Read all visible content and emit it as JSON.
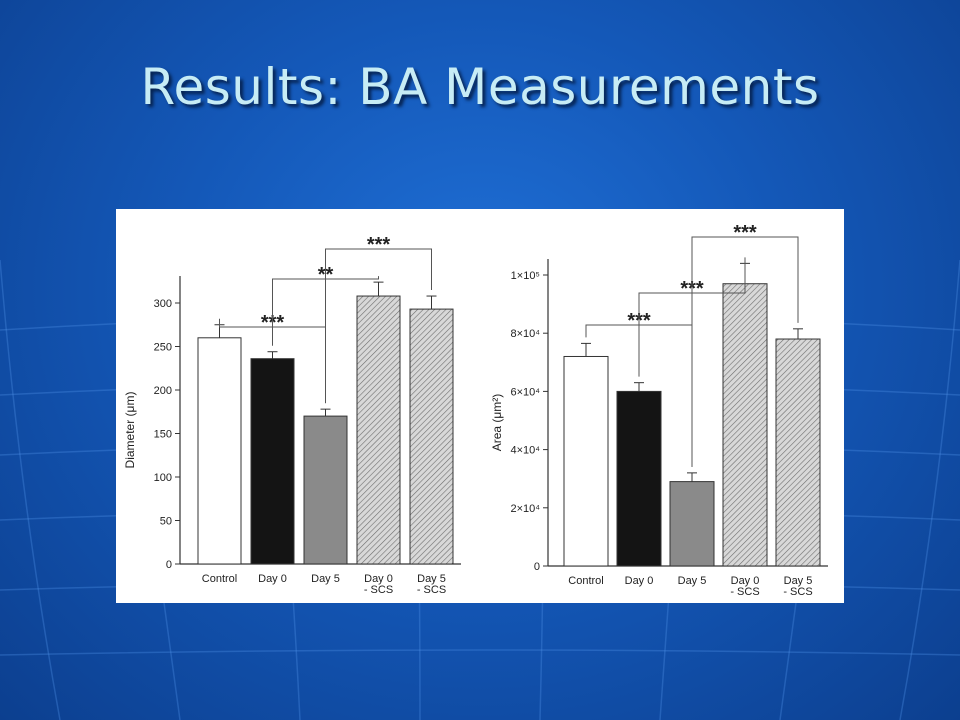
{
  "slide": {
    "title": "Results: BA Measurements"
  },
  "colors": {
    "background": "#1458b8",
    "title": "#c7ecf5",
    "panel": "#ffffff",
    "control_bar": "#ffffff",
    "day0_bar": "#141414",
    "day5_bar": "#8a8a8a",
    "scs_bar": "hatched-gray"
  },
  "chart_data": [
    {
      "type": "bar",
      "categories": [
        [
          "Control"
        ],
        [
          "Day 0"
        ],
        [
          "Day 5"
        ],
        [
          "Day 0",
          "- SCS"
        ],
        [
          "Day 5",
          "- SCS"
        ]
      ],
      "values": [
        260,
        236,
        170,
        308,
        293
      ],
      "errors": [
        15,
        8,
        8,
        16,
        15
      ],
      "fills": [
        "white",
        "black",
        "gray",
        "hatch",
        "hatch"
      ],
      "ylabel": "Diameter (μm)",
      "ylim": [
        0,
        320
      ],
      "yticks": [
        0,
        50,
        100,
        150,
        200,
        250,
        300
      ],
      "ytick_labels": [
        "0",
        "50",
        "100",
        "150",
        "200",
        "250",
        "300"
      ],
      "grid": false,
      "significance": [
        {
          "from": 0,
          "to": 2,
          "label": "***"
        },
        {
          "from": 1,
          "to": 3,
          "label": "**"
        },
        {
          "from": 2,
          "to": 4,
          "label": "***"
        }
      ]
    },
    {
      "type": "bar",
      "categories": [
        [
          "Control"
        ],
        [
          "Day 0"
        ],
        [
          "Day 5"
        ],
        [
          "Day 0",
          "- SCS"
        ],
        [
          "Day 5",
          "- SCS"
        ]
      ],
      "values": [
        72000,
        60000,
        29000,
        97000,
        78000
      ],
      "errors": [
        4500,
        3000,
        3000,
        7000,
        3500
      ],
      "fills": [
        "white",
        "black",
        "gray",
        "hatch",
        "hatch"
      ],
      "ylabel": "Area (μm²)",
      "ylim": [
        0,
        105000
      ],
      "yticks": [
        0,
        20000,
        40000,
        60000,
        80000,
        100000
      ],
      "ytick_labels": [
        "0",
        "2×10⁴",
        "4×10⁴",
        "6×10⁴",
        "8×10⁴",
        "1×10⁵"
      ],
      "grid": false,
      "significance": [
        {
          "from": 0,
          "to": 2,
          "label": "***"
        },
        {
          "from": 1,
          "to": 3,
          "label": "***"
        },
        {
          "from": 2,
          "to": 4,
          "label": "***"
        }
      ]
    }
  ]
}
